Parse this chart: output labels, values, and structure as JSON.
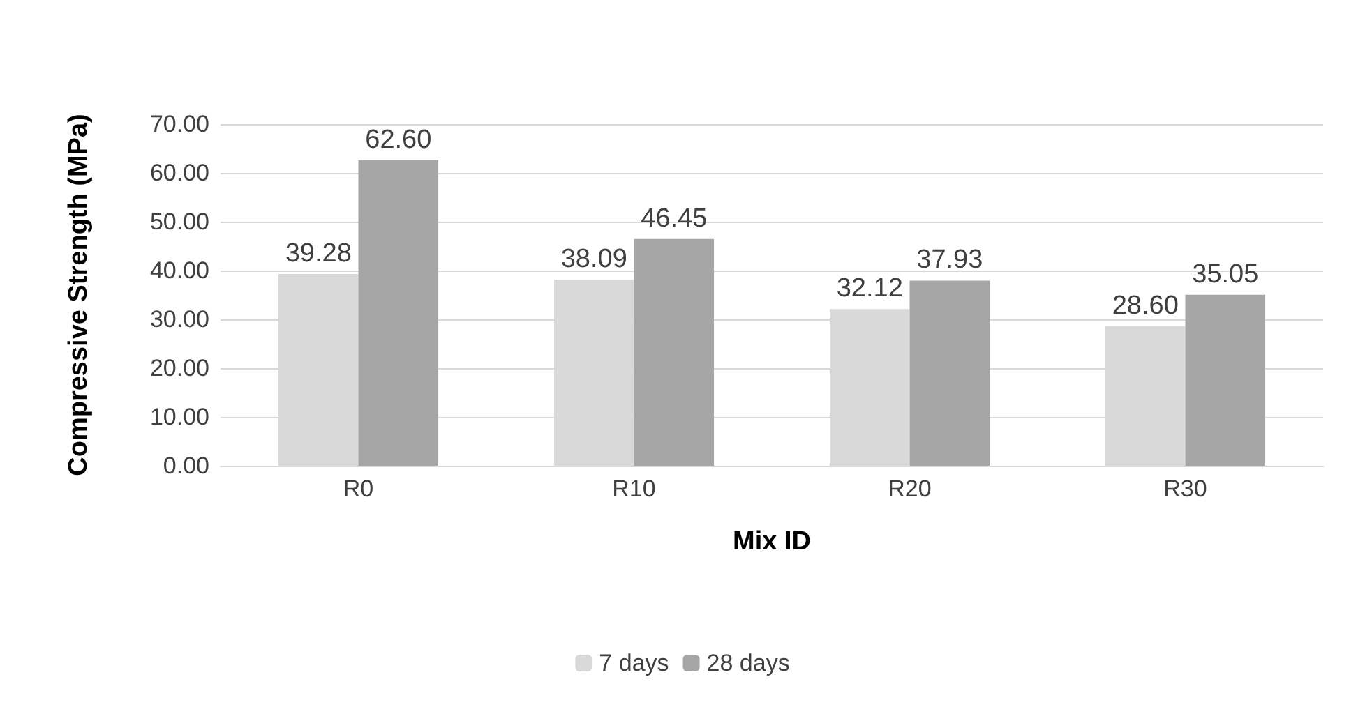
{
  "chart_data": {
    "type": "bar",
    "xlabel": "Mix ID",
    "ylabel": "Compressive Strength (MPa)",
    "categories": [
      "R0",
      "R10",
      "R20",
      "R30"
    ],
    "series": [
      {
        "name": "7 days",
        "color": "#d9d9d9",
        "values": [
          39.28,
          38.09,
          32.12,
          28.6
        ],
        "value_labels": [
          "39.28",
          "38.09",
          "32.12",
          "28.60"
        ]
      },
      {
        "name": "28 days",
        "color": "#a6a6a6",
        "values": [
          62.6,
          46.45,
          37.93,
          35.05
        ],
        "value_labels": [
          "62.60",
          "46.45",
          "37.93",
          "35.05"
        ]
      }
    ],
    "ylim": [
      0,
      70
    ],
    "yticks": [
      {
        "value": 0,
        "label": "0.00"
      },
      {
        "value": 10,
        "label": "10.00"
      },
      {
        "value": 20,
        "label": "20.00"
      },
      {
        "value": 30,
        "label": "30.00"
      },
      {
        "value": 40,
        "label": "40.00"
      },
      {
        "value": 50,
        "label": "50.00"
      },
      {
        "value": 60,
        "label": "60.00"
      },
      {
        "value": 70,
        "label": "70.00"
      }
    ],
    "grid": "y",
    "legend": "bottom"
  }
}
